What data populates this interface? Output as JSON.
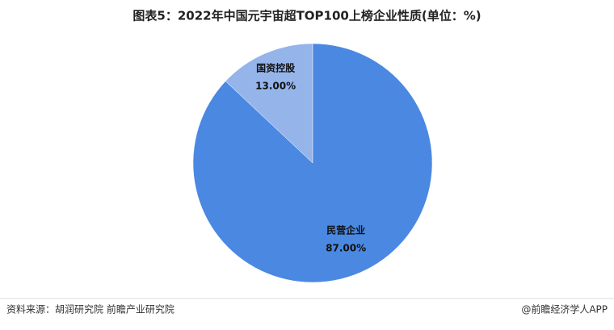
{
  "chart_data": {
    "type": "pie",
    "title": "图表5：2022年中国元宇宙超TOP100上榜企业性质(单位：%)",
    "categories": [
      "国资控股",
      "民营企业"
    ],
    "values": [
      13,
      87
    ],
    "value_labels": [
      "13.00%",
      "87.00%"
    ],
    "colors": [
      "#94b4ea",
      "#4a88e2"
    ]
  },
  "footer": {
    "source": "资料来源：胡润研究院 前瞻产业研究院",
    "credit": "@前瞻经济学人APP"
  }
}
